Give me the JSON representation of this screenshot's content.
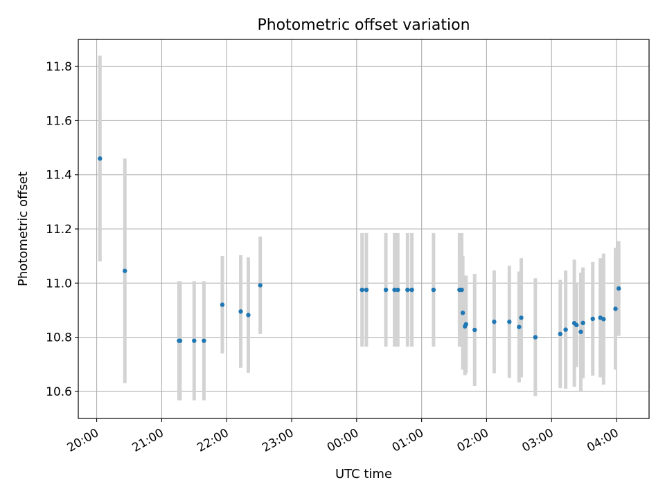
{
  "chart_data": {
    "type": "scatter",
    "title": "Photometric offset variation",
    "xlabel": "UTC time",
    "ylabel": "Photometric offset",
    "grid": true,
    "legend": "none",
    "colors": {
      "points": "#1f77b4",
      "errorbars": "#d3d3d3",
      "grid": "#b0b0b0"
    },
    "x_unit": "UTC time (HH:MM), night spanning midnight",
    "xlim": [
      "19:43",
      "04:30"
    ],
    "ylim": [
      10.5,
      11.9
    ],
    "xticks": [
      "20:00",
      "21:00",
      "22:00",
      "23:00",
      "00:00",
      "01:00",
      "02:00",
      "03:00",
      "04:00"
    ],
    "yticks": [
      "10.6",
      "10.8",
      "11.0",
      "11.2",
      "11.4",
      "11.6",
      "11.8"
    ],
    "points": [
      {
        "x": "20:03",
        "y": 11.46,
        "err": 0.38
      },
      {
        "x": "20:26",
        "y": 11.045,
        "err": 0.415
      },
      {
        "x": "21:16",
        "y": 10.787,
        "err": 0.22
      },
      {
        "x": "21:17",
        "y": 10.787,
        "err": 0.22
      },
      {
        "x": "21:30",
        "y": 10.787,
        "err": 0.22
      },
      {
        "x": "21:39",
        "y": 10.787,
        "err": 0.22
      },
      {
        "x": "21:56",
        "y": 10.92,
        "err": 0.18
      },
      {
        "x": "22:13",
        "y": 10.895,
        "err": 0.208
      },
      {
        "x": "22:20",
        "y": 10.882,
        "err": 0.213
      },
      {
        "x": "22:31",
        "y": 10.992,
        "err": 0.18
      },
      {
        "x": "00:05",
        "y": 10.975,
        "err": 0.21
      },
      {
        "x": "00:09",
        "y": 10.975,
        "err": 0.21
      },
      {
        "x": "00:27",
        "y": 10.975,
        "err": 0.21
      },
      {
        "x": "00:35",
        "y": 10.975,
        "err": 0.21
      },
      {
        "x": "00:38",
        "y": 10.975,
        "err": 0.21
      },
      {
        "x": "00:47",
        "y": 10.975,
        "err": 0.21
      },
      {
        "x": "00:51",
        "y": 10.975,
        "err": 0.21
      },
      {
        "x": "01:11",
        "y": 10.975,
        "err": 0.21
      },
      {
        "x": "01:35",
        "y": 10.975,
        "err": 0.21
      },
      {
        "x": "01:37",
        "y": 10.975,
        "err": 0.21
      },
      {
        "x": "01:38",
        "y": 10.89,
        "err": 0.21
      },
      {
        "x": "01:40",
        "y": 10.84,
        "err": 0.18
      },
      {
        "x": "01:41",
        "y": 10.848,
        "err": 0.18
      },
      {
        "x": "01:49",
        "y": 10.827,
        "err": 0.207
      },
      {
        "x": "02:07",
        "y": 10.857,
        "err": 0.19
      },
      {
        "x": "02:21",
        "y": 10.857,
        "err": 0.207
      },
      {
        "x": "02:30",
        "y": 10.838,
        "err": 0.205
      },
      {
        "x": "02:32",
        "y": 10.872,
        "err": 0.22
      },
      {
        "x": "02:45",
        "y": 10.8,
        "err": 0.218
      },
      {
        "x": "03:08",
        "y": 10.812,
        "err": 0.2
      },
      {
        "x": "03:13",
        "y": 10.828,
        "err": 0.218
      },
      {
        "x": "03:21",
        "y": 10.852,
        "err": 0.235
      },
      {
        "x": "03:23",
        "y": 10.845,
        "err": 0.155
      },
      {
        "x": "03:27",
        "y": 10.82,
        "err": 0.218
      },
      {
        "x": "03:29",
        "y": 10.853,
        "err": 0.205
      },
      {
        "x": "03:38",
        "y": 10.868,
        "err": 0.21
      },
      {
        "x": "03:45",
        "y": 10.872,
        "err": 0.22
      },
      {
        "x": "03:48",
        "y": 10.867,
        "err": 0.242
      },
      {
        "x": "03:59",
        "y": 10.905,
        "err": 0.225
      },
      {
        "x": "04:02",
        "y": 10.98,
        "err": 0.175
      }
    ]
  }
}
